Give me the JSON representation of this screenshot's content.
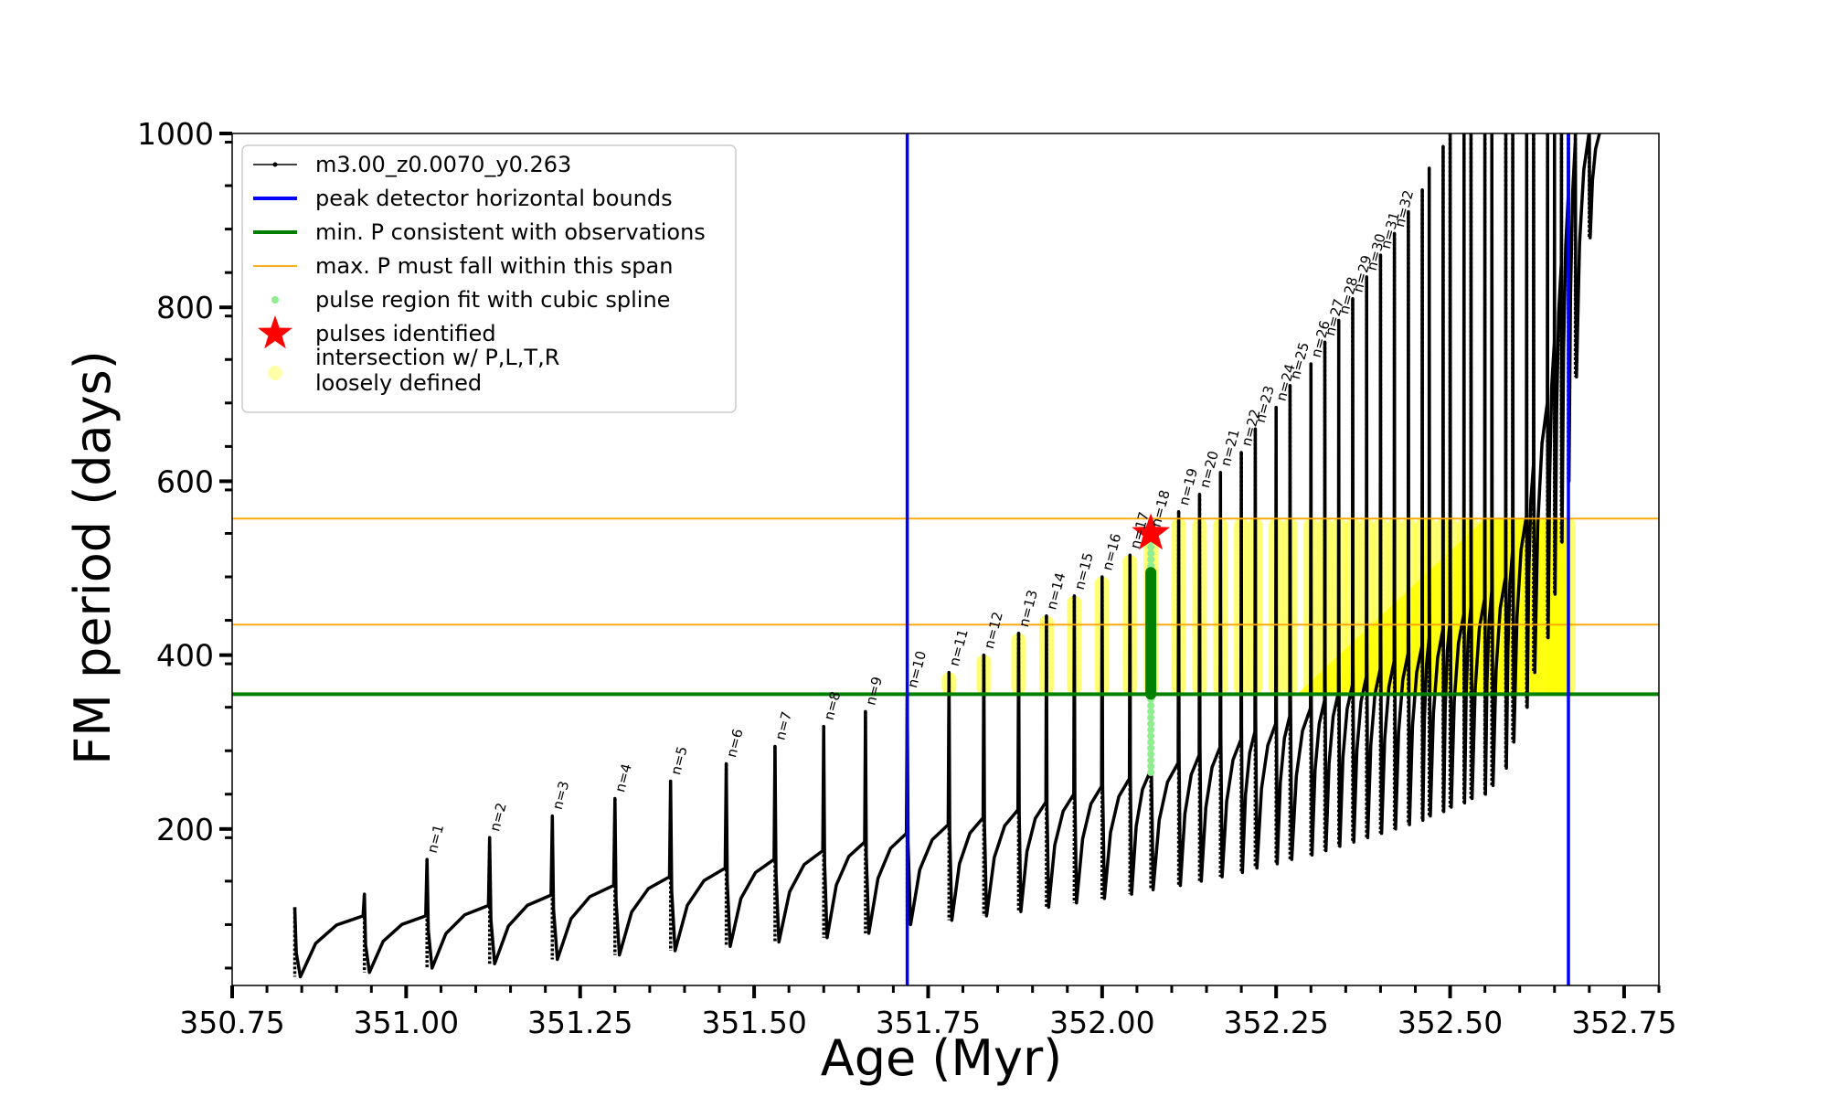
{
  "chart_data": {
    "type": "line",
    "title": "",
    "xlabel": "Age (Myr)",
    "ylabel": "FM period (days)",
    "xlim": [
      350.75,
      352.8
    ],
    "ylim": [
      20,
      1000
    ],
    "xticks": [
      "350.75",
      "351.00",
      "351.25",
      "351.50",
      "351.75",
      "352.00",
      "352.25",
      "352.50",
      "352.75"
    ],
    "yticks": [
      "200",
      "400",
      "600",
      "800",
      "1000"
    ],
    "grid": false,
    "legend_position": "top-left",
    "legend": [
      {
        "label": "m3.00_z0.0070_y0.263",
        "kind": "line-dot",
        "color": "#000000"
      },
      {
        "label": "peak detector horizontal bounds",
        "kind": "line",
        "color": "#0000ff"
      },
      {
        "label": "min. P consistent with observations",
        "kind": "line",
        "color": "#008000"
      },
      {
        "label": "max. P must fall within this span",
        "kind": "line",
        "color": "#ffa500"
      },
      {
        "label": "pulse region fit with cubic spline",
        "kind": "dot",
        "color": "#90ee90"
      },
      {
        "label": "pulses identified",
        "kind": "star",
        "color": "#ff0000"
      },
      {
        "label": [
          "intersection w/ P,L,T,R",
          "loosely defined"
        ],
        "kind": "circle",
        "color": "#ffffaa"
      }
    ],
    "series": [
      {
        "name": "m3.00_z0.0070_y0.263",
        "color": "#000000",
        "pulses": [
          {
            "age": 350.84,
            "peak": 110,
            "min": 30,
            "plateau": 100
          },
          {
            "age": 350.94,
            "peak": 125,
            "min": 35,
            "plateau": 100
          },
          {
            "age": 351.03,
            "peak": 165,
            "min": 40,
            "plateau": 112
          },
          {
            "age": 351.12,
            "peak": 190,
            "min": 45,
            "plateau": 124
          },
          {
            "age": 351.21,
            "peak": 215,
            "min": 50,
            "plateau": 135
          },
          {
            "age": 351.3,
            "peak": 235,
            "min": 55,
            "plateau": 145
          },
          {
            "age": 351.38,
            "peak": 255,
            "min": 60,
            "plateau": 155
          },
          {
            "age": 351.46,
            "peak": 275,
            "min": 65,
            "plateau": 165
          },
          {
            "age": 351.53,
            "peak": 295,
            "min": 70,
            "plateau": 175
          },
          {
            "age": 351.6,
            "peak": 318,
            "min": 75,
            "plateau": 185
          },
          {
            "age": 351.66,
            "peak": 335,
            "min": 80,
            "plateau": 195
          },
          {
            "age": 351.72,
            "peak": 355,
            "min": 90,
            "plateau": 205
          },
          {
            "age": 351.78,
            "peak": 380,
            "min": 95,
            "plateau": 213
          },
          {
            "age": 351.83,
            "peak": 400,
            "min": 100,
            "plateau": 222
          },
          {
            "age": 351.88,
            "peak": 425,
            "min": 105,
            "plateau": 231
          },
          {
            "age": 351.92,
            "peak": 445,
            "min": 110,
            "plateau": 240
          },
          {
            "age": 351.96,
            "peak": 468,
            "min": 115,
            "plateau": 249
          },
          {
            "age": 352.0,
            "peak": 490,
            "min": 120,
            "plateau": 258
          },
          {
            "age": 352.04,
            "peak": 515,
            "min": 125,
            "plateau": 267
          },
          {
            "age": 352.07,
            "peak": 540,
            "min": 130,
            "plateau": 276
          },
          {
            "age": 352.11,
            "peak": 565,
            "min": 135,
            "plateau": 285
          },
          {
            "age": 352.14,
            "peak": 585,
            "min": 140,
            "plateau": 294
          },
          {
            "age": 352.17,
            "peak": 610,
            "min": 145,
            "plateau": 303
          },
          {
            "age": 352.2,
            "peak": 633,
            "min": 150,
            "plateau": 312
          },
          {
            "age": 352.22,
            "peak": 660,
            "min": 155,
            "plateau": 321
          },
          {
            "age": 352.25,
            "peak": 685,
            "min": 160,
            "plateau": 330
          },
          {
            "age": 352.27,
            "peak": 710,
            "min": 165,
            "plateau": 339
          },
          {
            "age": 352.3,
            "peak": 735,
            "min": 170,
            "plateau": 348
          },
          {
            "age": 352.32,
            "peak": 760,
            "min": 175,
            "plateau": 357
          },
          {
            "age": 352.34,
            "peak": 785,
            "min": 180,
            "plateau": 366
          },
          {
            "age": 352.36,
            "peak": 810,
            "min": 185,
            "plateau": 375
          },
          {
            "age": 352.38,
            "peak": 835,
            "min": 190,
            "plateau": 384
          },
          {
            "age": 352.4,
            "peak": 860,
            "min": 195,
            "plateau": 393
          },
          {
            "age": 352.42,
            "peak": 885,
            "min": 200,
            "plateau": 402
          },
          {
            "age": 352.44,
            "peak": 910,
            "min": 205,
            "plateau": 411
          },
          {
            "age": 352.46,
            "peak": 935,
            "min": 210,
            "plateau": 420
          },
          {
            "age": 352.47,
            "peak": 960,
            "min": 215,
            "plateau": 429
          },
          {
            "age": 352.49,
            "peak": 985,
            "min": 220,
            "plateau": 438
          },
          {
            "age": 352.5,
            "peak": 1000,
            "min": 225,
            "plateau": 447
          },
          {
            "age": 352.52,
            "peak": 1000,
            "min": 230,
            "plateau": 456
          },
          {
            "age": 352.53,
            "peak": 1000,
            "min": 235,
            "plateau": 465
          },
          {
            "age": 352.55,
            "peak": 1000,
            "min": 240,
            "plateau": 474
          },
          {
            "age": 352.56,
            "peak": 1000,
            "min": 250,
            "plateau": 490
          },
          {
            "age": 352.58,
            "peak": 1000,
            "min": 270,
            "plateau": 520
          },
          {
            "age": 352.59,
            "peak": 1000,
            "min": 300,
            "plateau": 560
          },
          {
            "age": 352.61,
            "peak": 1000,
            "min": 340,
            "plateau": 620
          },
          {
            "age": 352.62,
            "peak": 1000,
            "min": 380,
            "plateau": 690
          },
          {
            "age": 352.64,
            "peak": 1000,
            "min": 420,
            "plateau": 760
          },
          {
            "age": 352.65,
            "peak": 1000,
            "min": 470,
            "plateau": 850
          },
          {
            "age": 352.66,
            "peak": 1000,
            "min": 530,
            "plateau": 930
          },
          {
            "age": 352.67,
            "peak": 1000,
            "min": 600,
            "plateau": 990
          },
          {
            "age": 352.68,
            "peak": 1000,
            "min": 720,
            "plateau": 1000
          },
          {
            "age": 352.7,
            "peak": 1000,
            "min": 880,
            "plateau": 1000
          }
        ]
      }
    ],
    "pulse_labels": [
      {
        "text": "n=1",
        "age": 351.03,
        "y": 165
      },
      {
        "text": "n=2",
        "age": 351.12,
        "y": 190
      },
      {
        "text": "n=3",
        "age": 351.21,
        "y": 215
      },
      {
        "text": "n=4",
        "age": 351.3,
        "y": 235
      },
      {
        "text": "n=5",
        "age": 351.38,
        "y": 255
      },
      {
        "text": "n=6",
        "age": 351.46,
        "y": 275
      },
      {
        "text": "n=7",
        "age": 351.53,
        "y": 295
      },
      {
        "text": "n=8",
        "age": 351.6,
        "y": 318
      },
      {
        "text": "n=9",
        "age": 351.66,
        "y": 335
      },
      {
        "text": "n=10",
        "age": 351.72,
        "y": 355
      },
      {
        "text": "n=11",
        "age": 351.78,
        "y": 380
      },
      {
        "text": "n=12",
        "age": 351.83,
        "y": 400
      },
      {
        "text": "n=13",
        "age": 351.88,
        "y": 425
      },
      {
        "text": "n=14",
        "age": 351.92,
        "y": 445
      },
      {
        "text": "n=15",
        "age": 351.96,
        "y": 468
      },
      {
        "text": "n=16",
        "age": 352.0,
        "y": 490
      },
      {
        "text": "n=17",
        "age": 352.04,
        "y": 515
      },
      {
        "text": "n=18",
        "age": 352.07,
        "y": 540
      },
      {
        "text": "n=19",
        "age": 352.11,
        "y": 565
      },
      {
        "text": "n=20",
        "age": 352.14,
        "y": 585
      },
      {
        "text": "n=21",
        "age": 352.17,
        "y": 610
      },
      {
        "text": "n=22",
        "age": 352.2,
        "y": 633
      },
      {
        "text": "n=23",
        "age": 352.22,
        "y": 660
      },
      {
        "text": "n=24",
        "age": 352.25,
        "y": 685
      },
      {
        "text": "n=25",
        "age": 352.27,
        "y": 710
      },
      {
        "text": "n=26",
        "age": 352.3,
        "y": 735
      },
      {
        "text": "n=27",
        "age": 352.32,
        "y": 760
      },
      {
        "text": "n=28",
        "age": 352.34,
        "y": 785
      },
      {
        "text": "n=29",
        "age": 352.36,
        "y": 810
      },
      {
        "text": "n=30",
        "age": 352.38,
        "y": 835
      },
      {
        "text": "n=31",
        "age": 352.4,
        "y": 860
      },
      {
        "text": "n=32",
        "age": 352.42,
        "y": 885
      }
    ],
    "peak_detector_bounds": {
      "color": "#0000ff",
      "ages": [
        351.72,
        352.67
      ]
    },
    "min_period_line": {
      "color": "#008000",
      "value": 355
    },
    "max_period_span": {
      "color": "#ffa500",
      "values": [
        435,
        557
      ]
    },
    "spline_fit_region": {
      "color": "#90ee90",
      "age": 352.07,
      "period_range": [
        265,
        540
      ]
    },
    "identified_pulse": {
      "color": "#ff0000",
      "age": 352.07,
      "period": 540,
      "green_range": [
        355,
        495
      ]
    },
    "intersection_region": {
      "color": "#ffff00",
      "period_range": [
        355,
        557
      ],
      "age_range": [
        351.72,
        352.67
      ]
    }
  }
}
